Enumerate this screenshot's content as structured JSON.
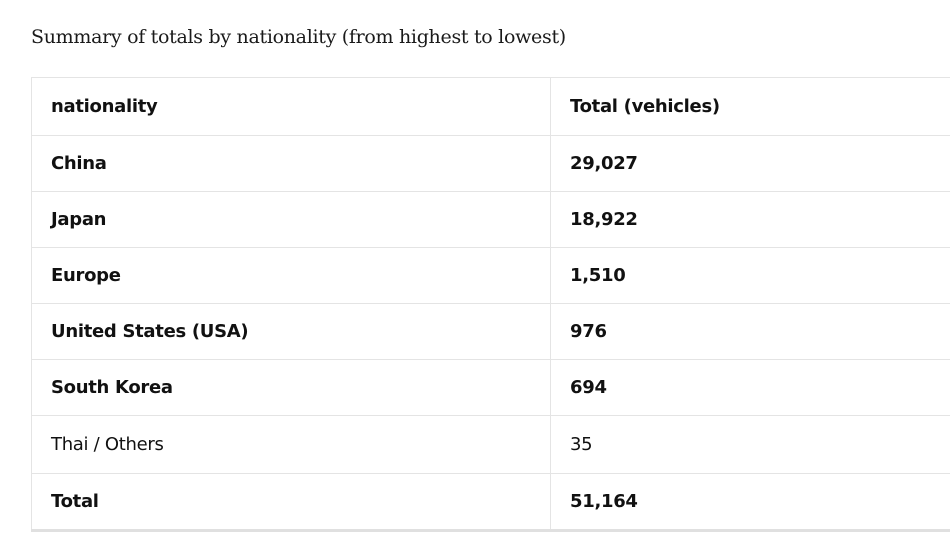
{
  "title": "Summary of totals by nationality (from highest to lowest)",
  "table": {
    "header": [
      "nationality",
      "Total (vehicles)"
    ],
    "rows": [
      [
        "China",
        "29,027"
      ],
      [
        "Japan",
        "18,922"
      ],
      [
        "Europe",
        "1,510"
      ],
      [
        "United States (USA)",
        "976"
      ],
      [
        "South Korea",
        "694"
      ],
      [
        "Thai / Others",
        "35"
      ],
      [
        "Total",
        "51,164"
      ]
    ]
  }
}
